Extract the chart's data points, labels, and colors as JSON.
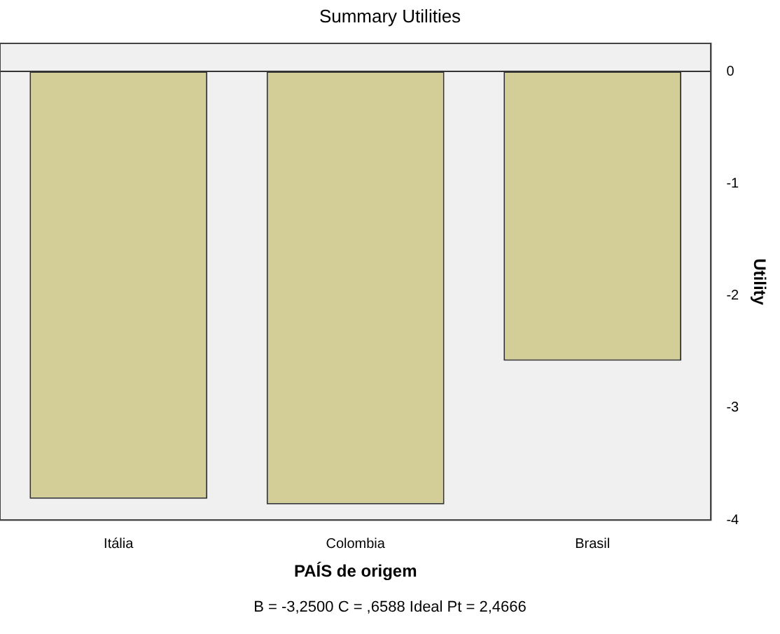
{
  "chart_data": {
    "type": "bar",
    "title": "Summary Utilities",
    "xlabel": "PAÍS de origem",
    "ylabel": "Utility",
    "categories": [
      "Itália",
      "Colombia",
      "Brasil"
    ],
    "values": [
      -3.81,
      -3.86,
      -2.58
    ],
    "color": "#d3ce98",
    "ylim": [
      -4,
      0.25
    ],
    "yticks": [
      0,
      -1,
      -2,
      -3,
      -4
    ],
    "grid": false,
    "legend": false,
    "ref_lines": [
      {
        "axis": "y",
        "value": 0,
        "color": "#333333"
      }
    ],
    "annotations": [
      "B = -3,2500 C = ,6588 Ideal Pt = 2,4666"
    ]
  }
}
